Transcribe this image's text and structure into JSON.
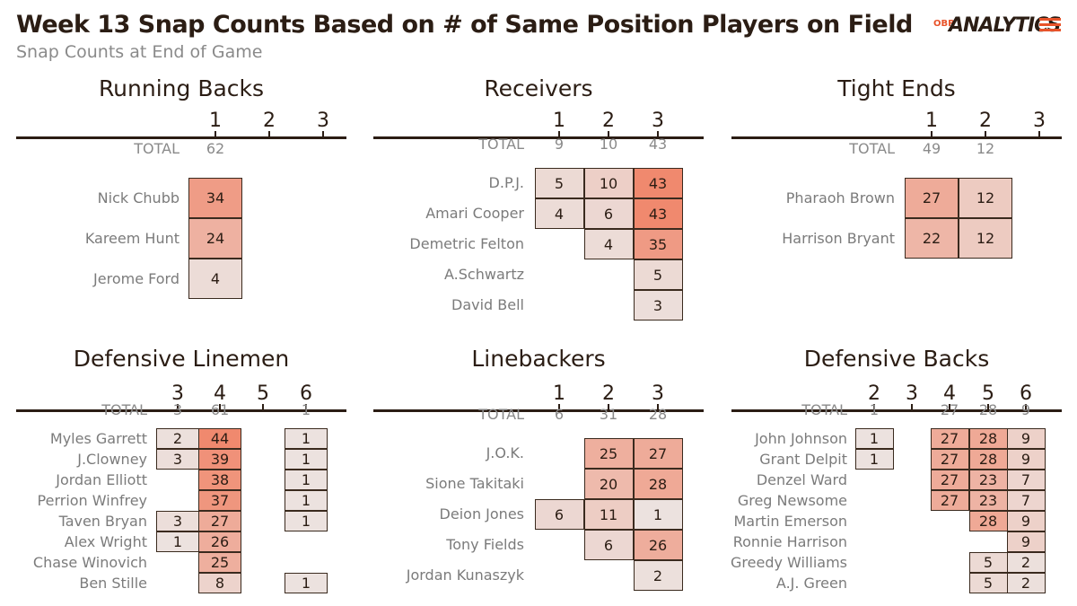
{
  "title": "Week 13 Snap Counts Based on # of Same Position Players on Field",
  "subtitle": "Snap Counts at End of Game",
  "logo": {
    "prefix": "OBR",
    "text": "ANALYTICS"
  },
  "colors": {
    "low": "#ece2df",
    "high": "#f0896e",
    "text_dark": "#2b1d14",
    "text_gray": "#8a8a8a",
    "accent": "#e8532a"
  },
  "chart_data": [
    {
      "type": "table",
      "title": "Running Backs",
      "columns": [
        "1",
        "2",
        "3"
      ],
      "total_label": "TOTAL",
      "totals": [
        62,
        null,
        null
      ],
      "rows": [
        {
          "name": "Nick Chubb",
          "values": [
            34,
            null,
            null
          ]
        },
        {
          "name": "Kareem Hunt",
          "values": [
            24,
            null,
            null
          ]
        },
        {
          "name": "Jerome Ford",
          "values": [
            4,
            null,
            null
          ]
        }
      ]
    },
    {
      "type": "table",
      "title": "Receivers",
      "columns": [
        "1",
        "2",
        "3"
      ],
      "total_label": "TOTAL",
      "totals": [
        9,
        10,
        43
      ],
      "rows": [
        {
          "name": "D.P.J.",
          "values": [
            5,
            10,
            43
          ]
        },
        {
          "name": "Amari Cooper",
          "values": [
            4,
            6,
            43
          ]
        },
        {
          "name": "Demetric Felton",
          "values": [
            null,
            4,
            35
          ]
        },
        {
          "name": "A.Schwartz",
          "values": [
            null,
            null,
            5
          ]
        },
        {
          "name": "David Bell",
          "values": [
            null,
            null,
            3
          ]
        }
      ]
    },
    {
      "type": "table",
      "title": "Tight Ends",
      "columns": [
        "1",
        "2",
        "3"
      ],
      "total_label": "TOTAL",
      "totals": [
        49,
        12,
        null
      ],
      "rows": [
        {
          "name": "Pharaoh Brown",
          "values": [
            27,
            12,
            null
          ]
        },
        {
          "name": "Harrison Bryant",
          "values": [
            22,
            12,
            null
          ]
        }
      ]
    },
    {
      "type": "table",
      "title": "Defensive Linemen",
      "columns": [
        "3",
        "4",
        "5",
        "6"
      ],
      "total_label": "TOTAL",
      "totals": [
        3,
        61,
        null,
        1
      ],
      "rows": [
        {
          "name": "Myles Garrett",
          "values": [
            2,
            44,
            null,
            1
          ]
        },
        {
          "name": "J.Clowney",
          "values": [
            3,
            39,
            null,
            1
          ]
        },
        {
          "name": "Jordan Elliott",
          "values": [
            null,
            38,
            null,
            1
          ]
        },
        {
          "name": "Perrion Winfrey",
          "values": [
            null,
            37,
            null,
            1
          ]
        },
        {
          "name": "Taven Bryan",
          "values": [
            3,
            27,
            null,
            1
          ]
        },
        {
          "name": "Alex Wright",
          "values": [
            1,
            26,
            null,
            null
          ]
        },
        {
          "name": "Chase Winovich",
          "values": [
            null,
            25,
            null,
            null
          ]
        },
        {
          "name": "Ben Stille",
          "values": [
            null,
            8,
            null,
            1
          ]
        }
      ]
    },
    {
      "type": "table",
      "title": "Linebackers",
      "columns": [
        "1",
        "2",
        "3"
      ],
      "total_label": "TOTAL",
      "totals": [
        6,
        31,
        28
      ],
      "rows": [
        {
          "name": "J.O.K.",
          "values": [
            null,
            25,
            27
          ]
        },
        {
          "name": "Sione Takitaki",
          "values": [
            null,
            20,
            28
          ]
        },
        {
          "name": "Deion Jones",
          "values": [
            6,
            11,
            1
          ]
        },
        {
          "name": "Tony Fields",
          "values": [
            null,
            6,
            26
          ]
        },
        {
          "name": "Jordan Kunaszyk",
          "values": [
            null,
            null,
            2
          ]
        }
      ]
    },
    {
      "type": "table",
      "title": "Defensive Backs",
      "columns": [
        "2",
        "3",
        "4",
        "5",
        "6"
      ],
      "total_label": "TOTAL",
      "totals": [
        1,
        null,
        27,
        28,
        9
      ],
      "rows": [
        {
          "name": "John Johnson",
          "values": [
            1,
            null,
            27,
            28,
            9
          ]
        },
        {
          "name": "Grant Delpit",
          "values": [
            1,
            null,
            27,
            28,
            9
          ]
        },
        {
          "name": "Denzel Ward",
          "values": [
            null,
            null,
            27,
            23,
            7
          ]
        },
        {
          "name": "Greg Newsome",
          "values": [
            null,
            null,
            27,
            23,
            7
          ]
        },
        {
          "name": "Martin Emerson",
          "values": [
            null,
            null,
            null,
            28,
            9
          ]
        },
        {
          "name": "Ronnie Harrison",
          "values": [
            null,
            null,
            null,
            null,
            9
          ]
        },
        {
          "name": "Greedy Williams",
          "values": [
            null,
            null,
            null,
            5,
            2
          ]
        },
        {
          "name": "A.J. Green",
          "values": [
            null,
            null,
            null,
            5,
            2
          ]
        }
      ]
    }
  ]
}
